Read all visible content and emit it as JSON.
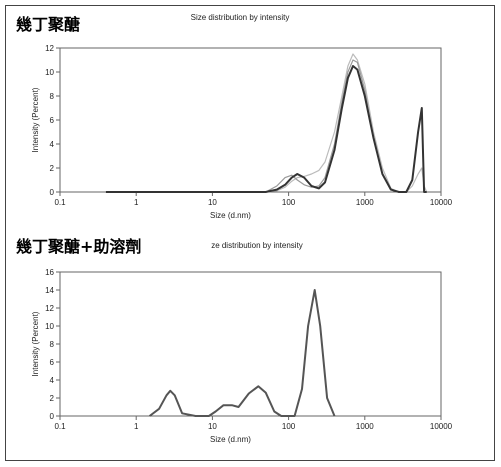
{
  "chart_data": [
    {
      "type": "line",
      "title": "Size distribution by intensity",
      "label": "幾丁聚醣",
      "xlabel": "Size (d.nm)",
      "ylabel": "Intensity (Percent)",
      "log_x": true,
      "x": [
        0.4,
        10,
        50,
        70,
        90,
        110,
        130,
        160,
        200,
        250,
        300,
        400,
        500,
        600,
        700,
        800,
        1000,
        1300,
        1700,
        2200,
        2800,
        3500,
        4200,
        5000,
        5600,
        6000,
        6500
      ],
      "series": [
        {
          "color": "#bbbbbb",
          "values": [
            0,
            0,
            0,
            0.1,
            0.4,
            0.9,
            1.2,
            1.3,
            1.5,
            1.8,
            2.5,
            5,
            8,
            10.5,
            11.5,
            11,
            9,
            5,
            2,
            0.3,
            0,
            0,
            0.5,
            1.5,
            2,
            0.5,
            0
          ]
        },
        {
          "color": "#999999",
          "values": [
            0,
            0,
            0,
            0.5,
            1.2,
            1.4,
            1.0,
            0.6,
            0.4,
            0.5,
            1.2,
            4,
            7.5,
            10,
            11,
            10.8,
            8.5,
            4.5,
            1.5,
            0.2,
            0,
            0,
            0,
            0,
            0,
            0,
            0
          ]
        },
        {
          "color": "#333333",
          "values": [
            0,
            0,
            0,
            0.2,
            0.6,
            1.2,
            1.5,
            1.2,
            0.5,
            0.3,
            0.8,
            3.5,
            7,
            9.5,
            10.5,
            10.2,
            8,
            4.5,
            1.5,
            0.2,
            0,
            0,
            1,
            5,
            7,
            0,
            0
          ]
        }
      ],
      "xlim": [
        0.1,
        10000
      ],
      "xticks": [
        0.1,
        1,
        10,
        100,
        1000,
        10000
      ],
      "ylim": [
        0,
        12
      ],
      "yticks": [
        0,
        2,
        4,
        6,
        8,
        10,
        12
      ]
    },
    {
      "type": "line",
      "title": "ze distribution by intensity",
      "label": "幾丁聚醣+助溶劑",
      "xlabel": "Size (d.nm)",
      "ylabel": "Intensity (Percent)",
      "log_x": true,
      "x": [
        1.5,
        2,
        2.5,
        2.8,
        3.2,
        4,
        6,
        9,
        11,
        14,
        18,
        22,
        30,
        40,
        50,
        65,
        80,
        120,
        150,
        180,
        220,
        260,
        320,
        400
      ],
      "series": [
        {
          "color": "#555555",
          "values": [
            0,
            0.8,
            2.3,
            2.8,
            2.3,
            0.3,
            0,
            0,
            0.5,
            1.2,
            1.2,
            1.0,
            2.5,
            3.3,
            2.6,
            0.5,
            0,
            0,
            3,
            10,
            14,
            10,
            2,
            0
          ]
        }
      ],
      "xlim": [
        0.1,
        10000
      ],
      "xticks": [
        0.1,
        1,
        10,
        100,
        1000,
        10000
      ],
      "ylim": [
        0,
        16
      ],
      "yticks": [
        0,
        2,
        4,
        6,
        8,
        10,
        12,
        14,
        16
      ]
    }
  ]
}
